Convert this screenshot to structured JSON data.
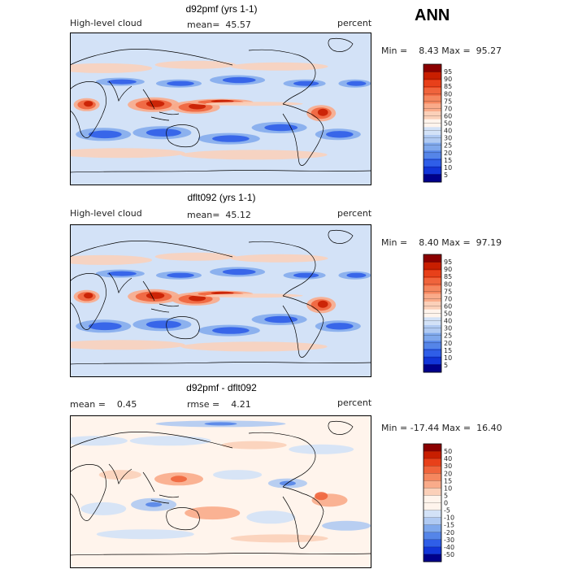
{
  "season": "ANN",
  "panels": [
    {
      "title": "d92pmf (yrs 1-1)",
      "left_label": "High-level cloud",
      "center_label": "mean=  45.57",
      "right_label": "percent",
      "minmax": "Min =    8.43 Max =  95.27",
      "variant": "model"
    },
    {
      "title": "dflt092 (yrs 1-1)",
      "left_label": "High-level cloud",
      "center_label": "mean=  45.12",
      "right_label": "percent",
      "minmax": "Min =    8.40 Max =  97.19",
      "variant": "model"
    },
    {
      "title": "d92pmf - dflt092",
      "left_label": "mean =    0.45",
      "center_label": "rmse =    4.21",
      "right_label": "percent",
      "minmax": "Min = -17.44 Max =  16.40",
      "variant": "diff"
    }
  ],
  "colorbars": [
    {
      "labels": [
        "95",
        "90",
        "85",
        "80",
        "75",
        "70",
        "60",
        "50",
        "40",
        "30",
        "25",
        "20",
        "15",
        "10",
        "5"
      ],
      "colors": [
        "#8b0000",
        "#c81e00",
        "#e8401a",
        "#f0643c",
        "#f5875f",
        "#f9ab8a",
        "#fbd0b9",
        "#fff4ec",
        "#d3e2f7",
        "#b0caf2",
        "#7fa8ec",
        "#5585e8",
        "#2f5ee8",
        "#1235d8",
        "#00008b"
      ]
    },
    {
      "labels": [
        "95",
        "90",
        "85",
        "80",
        "75",
        "70",
        "60",
        "50",
        "40",
        "30",
        "25",
        "20",
        "15",
        "10",
        "5"
      ],
      "colors": [
        "#8b0000",
        "#c81e00",
        "#e8401a",
        "#f0643c",
        "#f5875f",
        "#f9ab8a",
        "#fbd0b9",
        "#fff4ec",
        "#d3e2f7",
        "#b0caf2",
        "#7fa8ec",
        "#5585e8",
        "#2f5ee8",
        "#1235d8",
        "#00008b"
      ]
    },
    {
      "labels": [
        "50",
        "40",
        "30",
        "20",
        "15",
        "10",
        "5",
        "0",
        "-5",
        "-10",
        "-15",
        "-20",
        "-30",
        "-40",
        "-50"
      ],
      "colors": [
        "#8b0000",
        "#c81e00",
        "#e8401a",
        "#f0643c",
        "#f5875f",
        "#f9ab8a",
        "#fbd0b9",
        "#fff4ec",
        "#fff4ec",
        "#d3e2f7",
        "#b0caf2",
        "#7fa8ec",
        "#5585e8",
        "#2f5ee8",
        "#1235d8",
        "#00008b"
      ]
    }
  ]
}
